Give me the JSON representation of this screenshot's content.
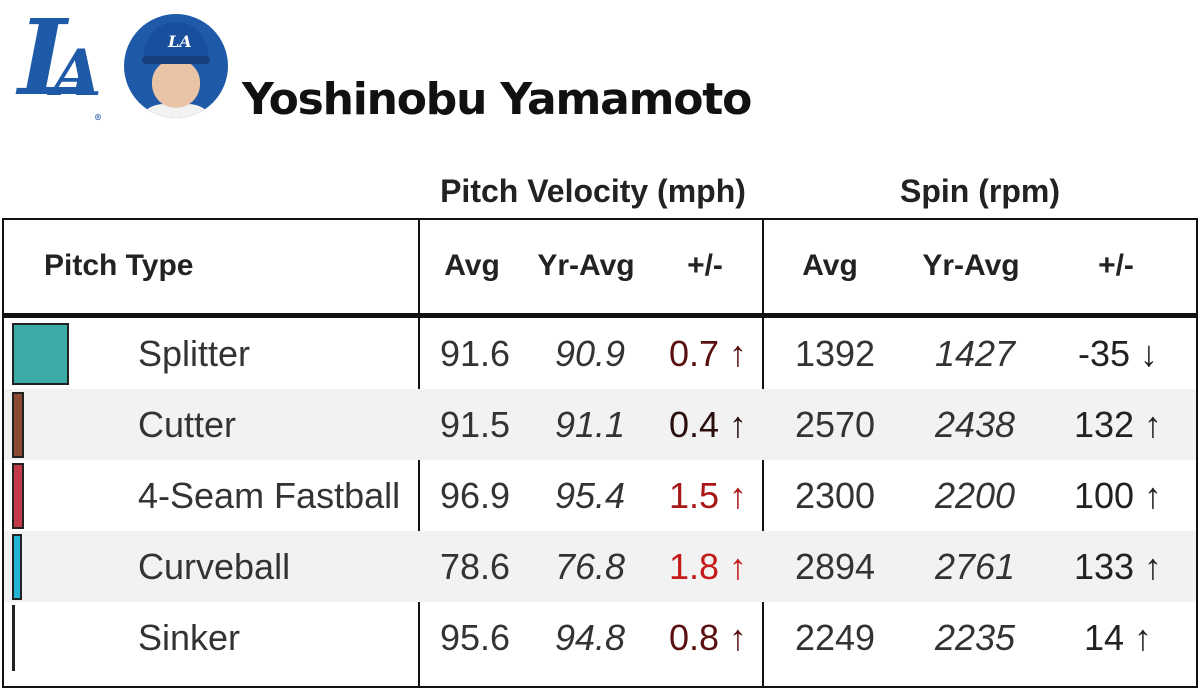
{
  "header": {
    "team_logo_icon": "la-dodgers-logo",
    "team_logo_text": "LA",
    "avatar": "player-headshot",
    "player_name": "Yoshinobu Yamamoto"
  },
  "groups": {
    "velocity_label": "Pitch Velocity (mph)",
    "spin_label": "Spin (rpm)"
  },
  "columns": {
    "pitch_type": "Pitch Type",
    "velo_avg": "Avg",
    "velo_yr_avg": "Yr-Avg",
    "velo_delta": "+/-",
    "spin_avg": "Avg",
    "spin_yr_avg": "Yr-Avg",
    "spin_delta": "+/-"
  },
  "rows": [
    {
      "pitch": "Splitter",
      "color": "#3aaba5",
      "velo_avg": "91.6",
      "velo_yr_avg": "90.9",
      "velo_delta": "0.7 ↑",
      "velo_delta_color": "#5a1010",
      "spin_avg": "1392",
      "spin_yr_avg": "1427",
      "spin_delta": "-35 ↓",
      "share": 0.92
    },
    {
      "pitch": "Cutter",
      "color": "#8b4a32",
      "velo_avg": "91.5",
      "velo_yr_avg": "91.1",
      "velo_delta": "0.4 ↑",
      "velo_delta_color": "#2a0d0d",
      "spin_avg": "2570",
      "spin_yr_avg": "2438",
      "spin_delta": "132 ↑",
      "share": 0.2
    },
    {
      "pitch": "4-Seam Fastball",
      "color": "#c23a4a",
      "velo_avg": "96.9",
      "velo_yr_avg": "95.4",
      "velo_delta": "1.5 ↑",
      "velo_delta_color": "#a81818",
      "spin_avg": "2300",
      "spin_yr_avg": "2200",
      "spin_delta": "100 ↑",
      "share": 0.2
    },
    {
      "pitch": "Curveball",
      "color": "#22b4d6",
      "velo_avg": "78.6",
      "velo_yr_avg": "76.8",
      "velo_delta": "1.8 ↑",
      "velo_delta_color": "#c41a1a",
      "spin_avg": "2894",
      "spin_yr_avg": "2761",
      "spin_delta": "133 ↑",
      "share": 0.16
    },
    {
      "pitch": "Sinker",
      "color": "#222222",
      "velo_avg": "95.6",
      "velo_yr_avg": "94.8",
      "velo_delta": "0.8 ↑",
      "velo_delta_color": "#5a1010",
      "spin_avg": "2249",
      "spin_yr_avg": "2235",
      "spin_delta": "14 ↑",
      "share": 0.04
    }
  ]
}
